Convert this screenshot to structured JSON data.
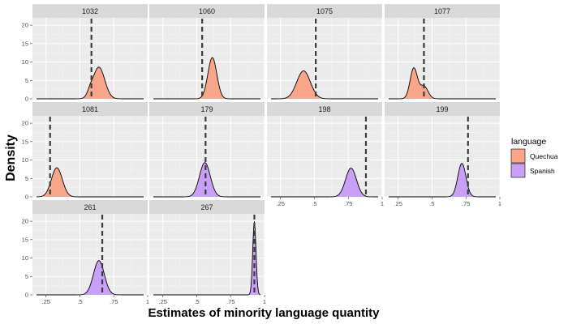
{
  "chart_data": {
    "type": "area",
    "subtype": "faceted-density",
    "xlabel": "Estimates of minority language quantity",
    "ylabel": "Density",
    "xlim": [
      0.15,
      1.0
    ],
    "ylim": [
      0,
      22
    ],
    "x_ticks": [
      0.25,
      0.5,
      0.75,
      1
    ],
    "x_tick_labels": [
      ".25",
      ".5",
      ".75",
      "1"
    ],
    "y_ticks": [
      0,
      5,
      10,
      15,
      20
    ],
    "y_tick_labels": [
      "0",
      "5",
      "10",
      "15",
      "20"
    ],
    "grid": true,
    "legend": {
      "title": "language",
      "position": "right",
      "entries": [
        {
          "name": "Quechua",
          "color": "#F8A58A"
        },
        {
          "name": "Spanish",
          "color": "#C9A0F7"
        }
      ]
    },
    "facets": [
      {
        "label": "1032",
        "language": "Quechua",
        "dashed_line_x": 0.585,
        "peaks": [
          {
            "mu": 0.64,
            "sd": 0.043,
            "h": 8.6
          },
          {
            "mu": 0.575,
            "sd": 0.02,
            "h": 1.2
          }
        ]
      },
      {
        "label": "1060",
        "language": "Quechua",
        "dashed_line_x": 0.54,
        "peaks": [
          {
            "mu": 0.615,
            "sd": 0.033,
            "h": 11.2
          }
        ]
      },
      {
        "label": "1075",
        "language": "Quechua",
        "dashed_line_x": 0.51,
        "peaks": [
          {
            "mu": 0.42,
            "sd": 0.05,
            "h": 7.6
          }
        ]
      },
      {
        "label": "1077",
        "language": "Quechua",
        "dashed_line_x": 0.44,
        "peaks": [
          {
            "mu": 0.365,
            "sd": 0.027,
            "h": 8.3
          },
          {
            "mu": 0.44,
            "sd": 0.03,
            "h": 3.4
          }
        ]
      },
      {
        "label": "1081",
        "language": "Quechua",
        "dashed_line_x": 0.28,
        "peaks": [
          {
            "mu": 0.33,
            "sd": 0.04,
            "h": 7.9
          }
        ]
      },
      {
        "label": "179",
        "language": "Spanish",
        "dashed_line_x": 0.565,
        "peaks": [
          {
            "mu": 0.56,
            "sd": 0.04,
            "h": 9.3
          }
        ]
      },
      {
        "label": "198",
        "language": "Spanish",
        "dashed_line_x": 0.88,
        "peaks": [
          {
            "mu": 0.77,
            "sd": 0.04,
            "h": 7.8
          }
        ]
      },
      {
        "label": "199",
        "language": "Spanish",
        "dashed_line_x": 0.765,
        "peaks": [
          {
            "mu": 0.72,
            "sd": 0.03,
            "h": 9.1
          }
        ]
      },
      {
        "label": "261",
        "language": "Spanish",
        "dashed_line_x": 0.665,
        "peaks": [
          {
            "mu": 0.64,
            "sd": 0.04,
            "h": 9.3
          }
        ]
      },
      {
        "label": "267",
        "language": "Spanish",
        "dashed_line_x": 0.925,
        "peaks": [
          {
            "mu": 0.925,
            "sd": 0.012,
            "h": 20.0
          }
        ]
      }
    ]
  }
}
